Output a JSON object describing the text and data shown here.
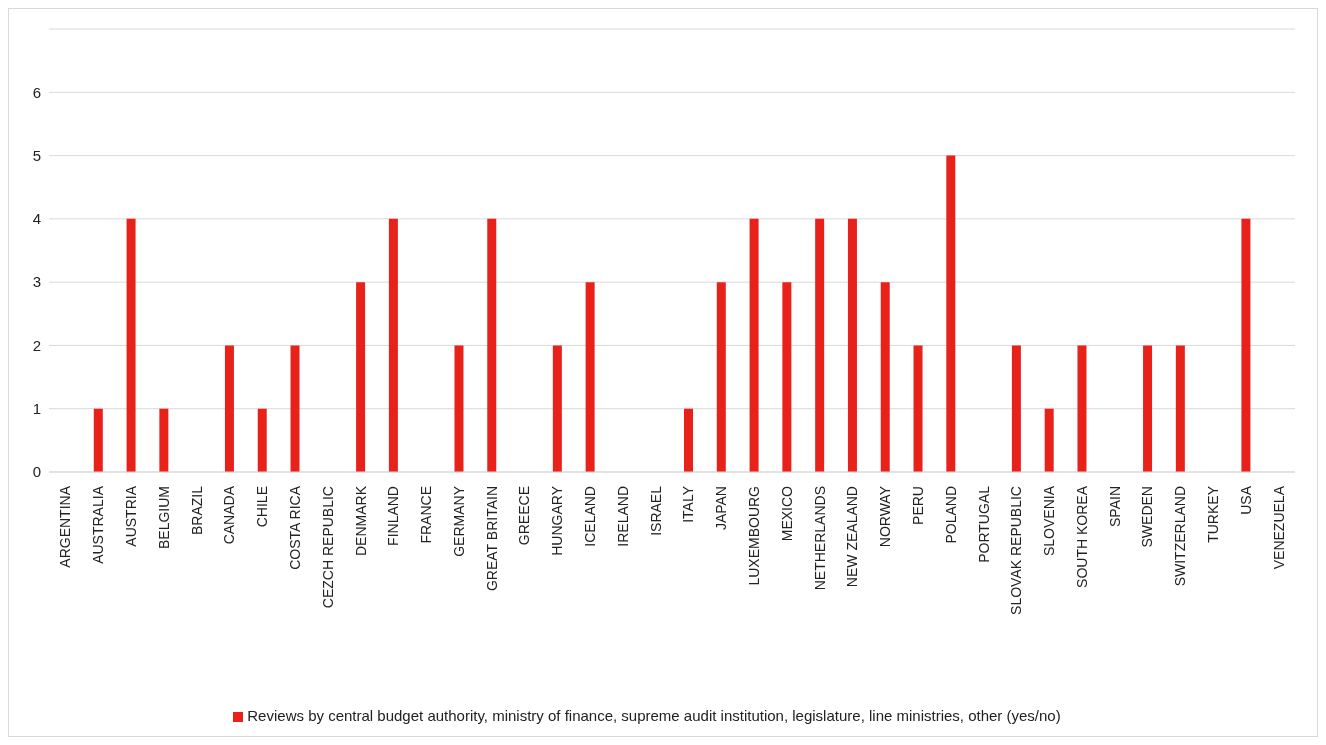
{
  "chart_data": {
    "type": "bar",
    "categories": [
      "ARGENTINA",
      "AUSTRALIA",
      "AUSTRIA",
      "BELGIUM",
      "BRAZIL",
      "CANADA",
      "CHILE",
      "COSTA RICA",
      "CEZCH REPUBLIC",
      "DENMARK",
      "FINLAND",
      "FRANCE",
      "GERMANY",
      "GREAT BRITAIN",
      "GREECE",
      "HUNGARY",
      "ICELAND",
      "IRELAND",
      "ISRAEL",
      "ITALY",
      "JAPAN",
      "LUXEMBOURG",
      "MEXICO",
      "NETHERLANDS",
      "NEW ZEALAND",
      "NORWAY",
      "PERU",
      "POLAND",
      "PORTUGAL",
      "SLOVAK REPUBLIC",
      "SLOVENIA",
      "SOUTH KOREA",
      "SPAIN",
      "SWEDEN",
      "SWITZERLAND",
      "TURKEY",
      "USA",
      "VENEZUELA"
    ],
    "series": [
      {
        "name": "Reviews by central budget authority, ministry of finance, supreme audit institution, legislature, line ministries, other (yes/no)",
        "color": "#e8211b",
        "values": [
          0,
          1,
          4,
          1,
          0,
          2,
          1,
          2,
          0,
          3,
          4,
          0,
          2,
          4,
          0,
          2,
          3,
          0,
          0,
          1,
          3,
          4,
          3,
          4,
          4,
          3,
          2,
          5,
          0,
          2,
          1,
          2,
          0,
          2,
          2,
          0,
          4,
          0
        ]
      }
    ],
    "ylim": [
      0,
      7
    ],
    "yticks": [
      0,
      1,
      2,
      3,
      4,
      5,
      6
    ],
    "grid": "y",
    "legend": "bottom"
  }
}
